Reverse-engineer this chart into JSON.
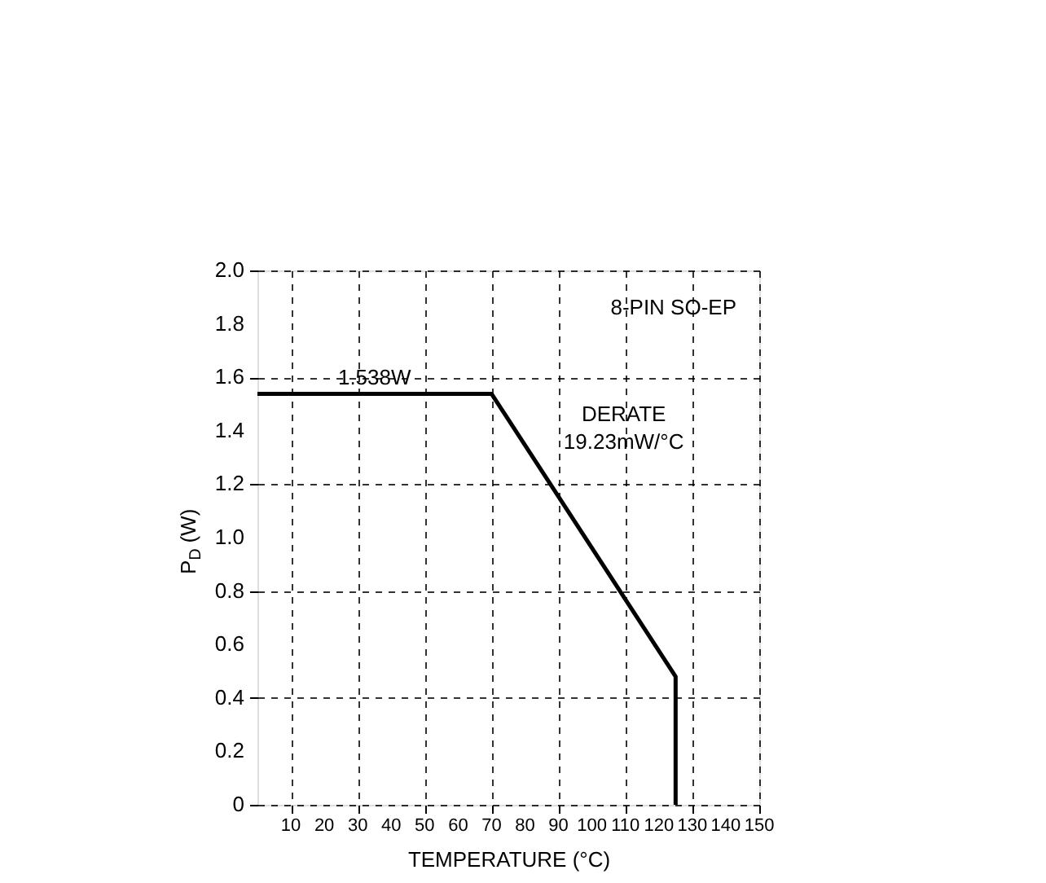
{
  "chart_data": {
    "type": "line",
    "xlabel": "TEMPERATURE (°C)",
    "ylabel": "P$_{D}$ (W)",
    "x": [
      0,
      70,
      125,
      125
    ],
    "series": [
      {
        "color": "#000000",
        "values": [
          1.538,
          1.538,
          0.48,
          0
        ]
      }
    ],
    "xlim": [
      0,
      150
    ],
    "xticks": [
      10,
      20,
      30,
      40,
      50,
      60,
      70,
      80,
      90,
      100,
      110,
      120,
      130,
      140,
      150
    ],
    "ylim": [
      0,
      2
    ],
    "yticks": [
      0,
      0.2,
      0.4,
      0.6,
      0.8,
      {
        "value": 1,
        "label": "1.0"
      },
      1.2,
      1.4,
      1.6,
      1.8,
      {
        "value": 2,
        "label": "2.0"
      }
    ],
    "grid": true,
    "line_style": "solid",
    "marker": "none",
    "annotations": [
      {
        "text": "1.538W",
        "x": 35,
        "y": 1.538
      },
      "DERATE\n19.23mW/°C",
      "8-PIN SO-EP"
    ]
  }
}
